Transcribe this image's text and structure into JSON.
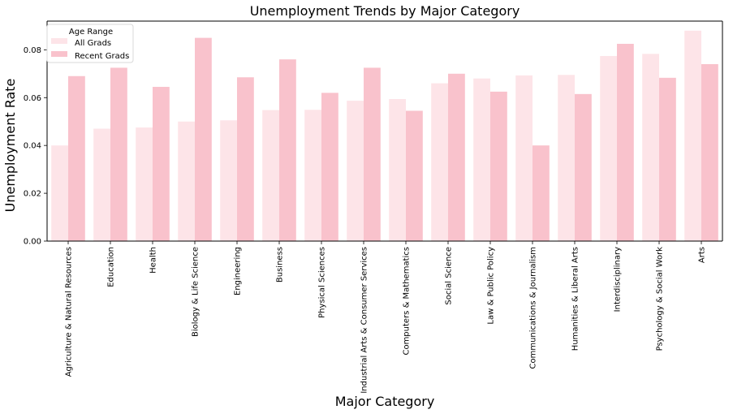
{
  "chart_data": {
    "type": "bar",
    "title": "Unemployment Trends by Major Category",
    "xlabel": "Major Category",
    "ylabel": "Unemployment Rate",
    "ylim": [
      0,
      0.092
    ],
    "yticks": [
      "0.00",
      "0.02",
      "0.04",
      "0.06",
      "0.08"
    ],
    "grid": false,
    "legend": {
      "title": "Age Range",
      "position": "top-left"
    },
    "categories": [
      "Agriculture & Natural Resources",
      "Education",
      "Health",
      "Biology & Life Science",
      "Engineering",
      "Business",
      "Physical Sciences",
      "Industrial Arts & Consumer Services",
      "Computers & Mathematics",
      "Social Science",
      "Law & Public Policy",
      "Communications & Journalism",
      "Humanities & Liberal Arts",
      "Interdisciplinary",
      "Psychology & Social Work",
      "Arts"
    ],
    "series": [
      {
        "name": "All Grads",
        "color": "#fde4e8",
        "values": [
          0.04,
          0.047,
          0.0475,
          0.05,
          0.0505,
          0.0548,
          0.0549,
          0.0587,
          0.0594,
          0.066,
          0.068,
          0.0693,
          0.0695,
          0.0774,
          0.0783,
          0.088
        ]
      },
      {
        "name": "Recent Grads",
        "color": "#f9c2cc",
        "values": [
          0.069,
          0.0725,
          0.0645,
          0.085,
          0.0685,
          0.076,
          0.062,
          0.0725,
          0.0545,
          0.07,
          0.0625,
          0.04,
          0.0615,
          0.0825,
          0.0683,
          0.074
        ]
      }
    ]
  }
}
